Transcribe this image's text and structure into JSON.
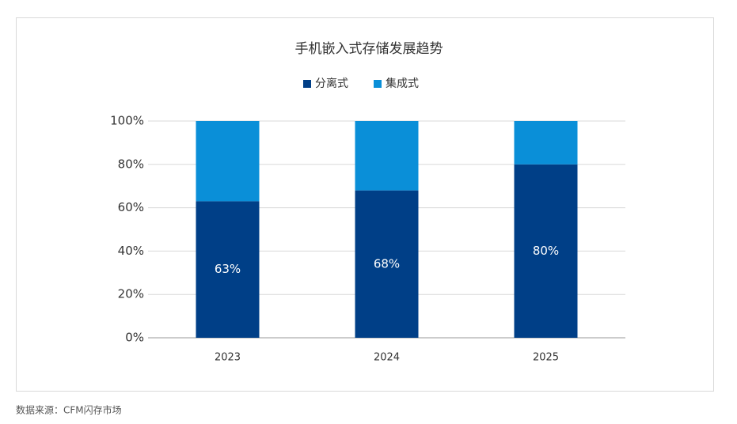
{
  "chart_data": {
    "type": "stacked_bar",
    "title": "手机嵌入式存储发展趋势",
    "categories": [
      "2023",
      "2024",
      "2025"
    ],
    "series": [
      {
        "name": "分离式",
        "color": "#003f87",
        "values": [
          63,
          68,
          80
        ],
        "value_labels": [
          "63%",
          "68%",
          "80%"
        ]
      },
      {
        "name": "集成式",
        "color": "#0a8fd8",
        "values": [
          37,
          32,
          20
        ]
      }
    ],
    "ylim": [
      0,
      100
    ],
    "yticks": [
      {
        "value": 0,
        "label": "0%"
      },
      {
        "value": 20,
        "label": "20%"
      },
      {
        "value": 40,
        "label": "40%"
      },
      {
        "value": 60,
        "label": "60%"
      },
      {
        "value": 80,
        "label": "80%"
      },
      {
        "value": 100,
        "label": "100%"
      }
    ],
    "grid": true,
    "legend": "top",
    "source": "数据来源：CFM闪存市场"
  }
}
